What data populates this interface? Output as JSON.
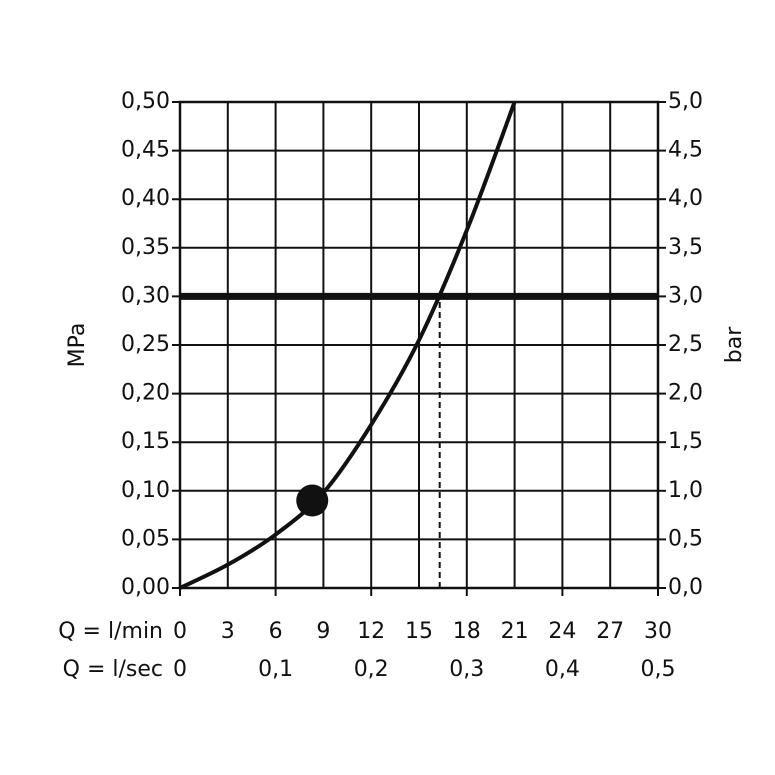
{
  "chart_data": {
    "type": "line",
    "xlabel": "Q = l/min",
    "x2label": "Q = l/sec",
    "ylabel": "MPa",
    "y2label": "bar",
    "x": [
      0,
      3,
      6,
      9,
      12,
      15,
      18,
      21
    ],
    "values": [
      0,
      0.024,
      0.055,
      0.098,
      0.168,
      0.255,
      0.368,
      0.5
    ],
    "color": "#111111",
    "xlim": [
      0,
      30
    ],
    "xticks": [
      0,
      3,
      6,
      9,
      12,
      15,
      18,
      21,
      24,
      27,
      30
    ],
    "x2lim": [
      0,
      0.5
    ],
    "x2ticks": [
      0,
      {
        "value": 0.1,
        "label": "0,1"
      },
      {
        "value": 0.2,
        "label": "0,2"
      },
      {
        "value": 0.3,
        "label": "0,3"
      },
      {
        "value": 0.4,
        "label": "0,4"
      },
      {
        "value": 0.5,
        "label": "0,5"
      }
    ],
    "ylim": [
      0,
      0.5
    ],
    "yticks": [
      {
        "value": 0,
        "label": "0,00"
      },
      {
        "value": 0.05,
        "label": "0,05"
      },
      {
        "value": 0.1,
        "label": "0,10"
      },
      {
        "value": 0.15,
        "label": "0,15"
      },
      {
        "value": 0.2,
        "label": "0,20"
      },
      {
        "value": 0.25,
        "label": "0,25"
      },
      {
        "value": 0.3,
        "label": "0,30"
      },
      {
        "value": 0.35,
        "label": "0,35"
      },
      {
        "value": 0.4,
        "label": "0,40"
      },
      {
        "value": 0.45,
        "label": "0,45"
      },
      {
        "value": 0.5,
        "label": "0,50"
      }
    ],
    "y2lim": [
      0,
      5
    ],
    "y2ticks": [
      {
        "value": 0,
        "label": "0,0"
      },
      {
        "value": 0.5,
        "label": "0,5"
      },
      {
        "value": 1,
        "label": "1,0"
      },
      {
        "value": 1.5,
        "label": "1,5"
      },
      {
        "value": 2,
        "label": "2,0"
      },
      {
        "value": 2.5,
        "label": "2,5"
      },
      {
        "value": 3,
        "label": "3,0"
      },
      {
        "value": 3.5,
        "label": "3,5"
      },
      {
        "value": 4,
        "label": "4,0"
      },
      {
        "value": 4.5,
        "label": "4,5"
      },
      {
        "value": 5,
        "label": "5,0"
      }
    ],
    "grid": true,
    "marker": {
      "x": 8.3,
      "y": 0.09
    },
    "hline": {
      "y": 0.3
    },
    "vline": {
      "x": 16.3
    }
  }
}
